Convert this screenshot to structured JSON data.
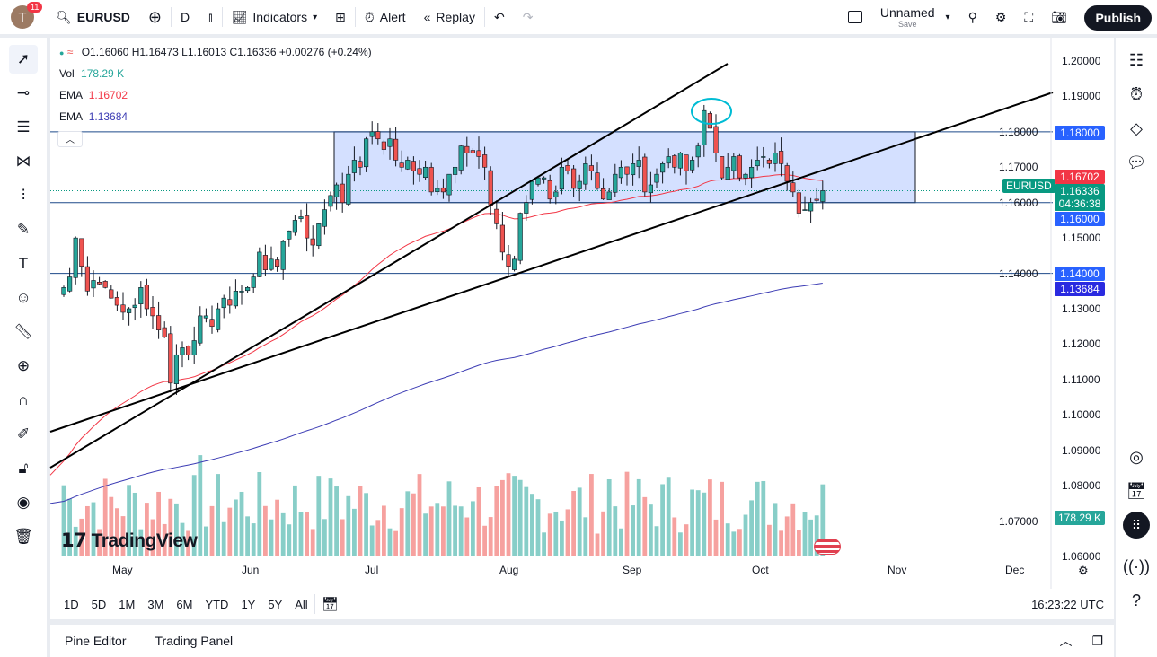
{
  "topbar": {
    "avatar_letter": "T",
    "notifications": "11",
    "symbol": "EURUSD",
    "interval": "D",
    "indicators": "Indicators",
    "alert": "Alert",
    "replay": "Replay",
    "layout_name": "Unnamed",
    "layout_sub": "Save",
    "publish": "Publish"
  },
  "legend": {
    "ohlc": "O1.16060 H1.16473 L1.16013 C1.16336 +0.00276 (+0.24%)",
    "vol_label": "Vol",
    "vol_value": "178.29 K",
    "ema1_label": "EMA",
    "ema1_value": "1.16702",
    "ema2_label": "EMA",
    "ema2_value": "1.13684"
  },
  "price_axis": [
    "1.20000",
    "1.19000",
    "1.18000",
    "1.17000",
    "1.16000",
    "1.15000",
    "1.14000",
    "1.13000",
    "1.12000",
    "1.11000",
    "1.10000",
    "1.09000",
    "1.08000",
    "1.07000",
    "1.06000"
  ],
  "price_tags": {
    "h1": "1.18000",
    "ema_fast": "1.16702",
    "symbol": "EURUSD",
    "last": "1.16336",
    "countdown": "04:36:38",
    "h2": "1.16000",
    "h3": "1.14000",
    "ema_slow": "1.13684",
    "volume": "178.29 K"
  },
  "time_axis": [
    "May",
    "Jun",
    "Jul",
    "Aug",
    "Sep",
    "Oct",
    "Nov",
    "Dec"
  ],
  "ranges": [
    "1D",
    "5D",
    "1M",
    "3M",
    "6M",
    "YTD",
    "1Y",
    "5Y",
    "All"
  ],
  "clock": "16:23:22 UTC",
  "panel": {
    "pine": "Pine Editor",
    "trading": "Trading Panel"
  },
  "watermark": "TradingView",
  "colors": {
    "up": "#26a69a",
    "down": "#ef5350",
    "ema_fast": "#f23645",
    "ema_slow": "#3c3cb4",
    "hline": "#2962ff",
    "accent": "#2962ff"
  },
  "candles_close": [
    1.136,
    1.139,
    1.15,
    1.142,
    1.135,
    1.138,
    1.137,
    1.136,
    1.133,
    1.131,
    1.129,
    1.13,
    1.131,
    1.136,
    1.13,
    1.128,
    1.124,
    1.122,
    1.109,
    1.117,
    1.119,
    1.117,
    1.121,
    1.128,
    1.128,
    1.125,
    1.13,
    1.133,
    1.131,
    1.135,
    1.135,
    1.136,
    1.139,
    1.146,
    1.141,
    1.144,
    1.142,
    1.149,
    1.152,
    1.155,
    1.156,
    1.15,
    1.148,
    1.154,
    1.158,
    1.162,
    1.165,
    1.16,
    1.168,
    1.172,
    1.17,
    1.178,
    1.18,
    1.178,
    1.175,
    1.178,
    1.172,
    1.17,
    1.172,
    1.169,
    1.168,
    1.17,
    1.163,
    1.164,
    1.163,
    1.168,
    1.17,
    1.176,
    1.174,
    1.174,
    1.173,
    1.17,
    1.159,
    1.154,
    1.146,
    1.142,
    1.144,
    1.157,
    1.16,
    1.166,
    1.167,
    1.167,
    1.161,
    1.163,
    1.17,
    1.169,
    1.164,
    1.166,
    1.171,
    1.169,
    1.164,
    1.161,
    1.163,
    1.168,
    1.17,
    1.168,
    1.171,
    1.172,
    1.163,
    1.165,
    1.168,
    1.171,
    1.173,
    1.17,
    1.174,
    1.169,
    1.172,
    1.176,
    1.186,
    1.181,
    1.174,
    1.167,
    1.17,
    1.173,
    1.167,
    1.168,
    1.17,
    1.172,
    1.173,
    1.171,
    1.174,
    1.171,
    1.166,
    1.163,
    1.157,
    1.158,
    1.16,
    1.1606,
    1.16336
  ]
}
